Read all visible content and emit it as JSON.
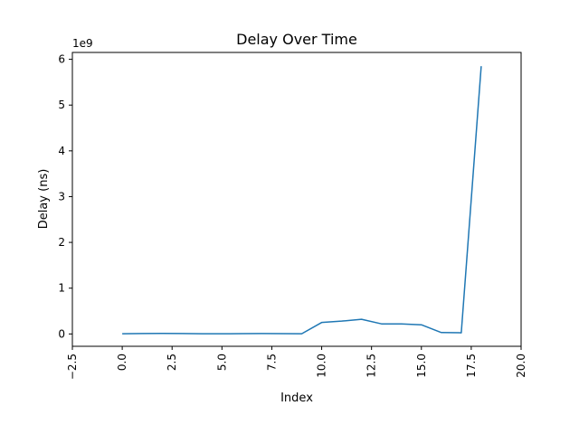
{
  "chart_data": {
    "type": "line",
    "title": "Delay Over Time",
    "xlabel": "Index",
    "ylabel": "Delay (ns)",
    "y_offset_text": "1e9",
    "xlim": [
      -2.5,
      20.0
    ],
    "ylim": [
      -0.27,
      6.15
    ],
    "x_ticks": [
      -2.5,
      0.0,
      2.5,
      5.0,
      7.5,
      10.0,
      12.5,
      15.0,
      17.5,
      20.0
    ],
    "x_tick_labels": [
      "−2.5",
      "0.0",
      "2.5",
      "5.0",
      "7.5",
      "10.0",
      "12.5",
      "15.0",
      "17.5",
      "20.0"
    ],
    "y_ticks": [
      0,
      1,
      2,
      3,
      4,
      5,
      6
    ],
    "y_tick_labels": [
      "0",
      "1",
      "2",
      "3",
      "4",
      "5",
      "6"
    ],
    "grid": false,
    "line_color": "#1f77b4",
    "series": [
      {
        "x": [
          0,
          1,
          2,
          3,
          4,
          5,
          6,
          7,
          8,
          9,
          10,
          11,
          12,
          13,
          14,
          15,
          16,
          17,
          18
        ],
        "y": [
          0.005,
          0.008,
          0.012,
          0.008,
          0.005,
          0.004,
          0.007,
          0.009,
          0.006,
          0.004,
          0.25,
          0.28,
          0.32,
          0.22,
          0.22,
          0.2,
          0.03,
          0.025,
          5.85
        ]
      }
    ]
  }
}
